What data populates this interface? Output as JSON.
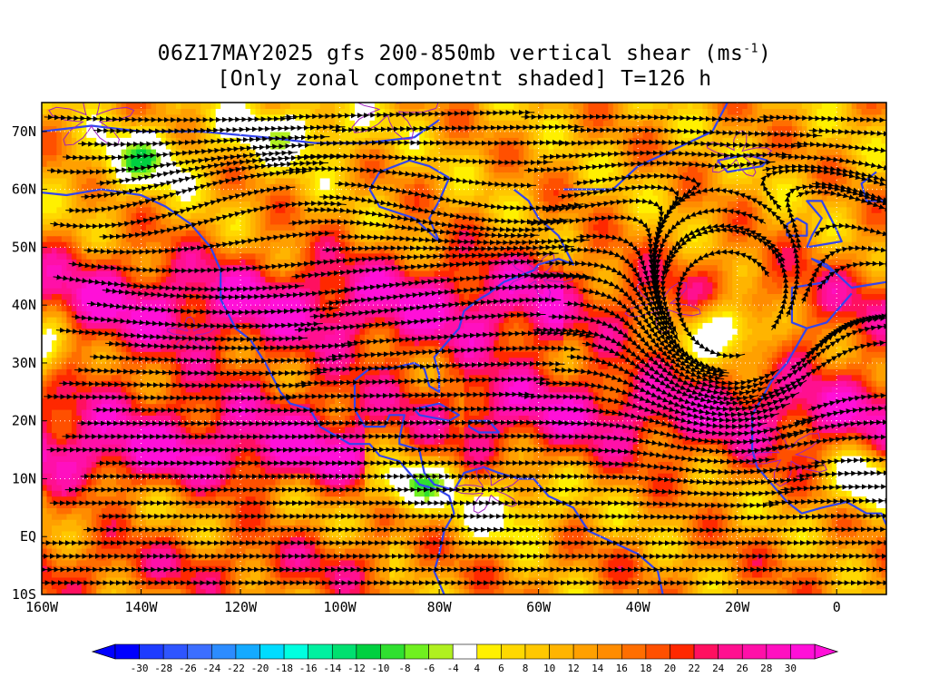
{
  "title": {
    "line1_prefix": "06Z17MAY2025 gfs 200-850mb vertical shear (ms",
    "line1_sup": "-1",
    "line1_suffix": ")",
    "line2": "[Only zonal componetnt shaded] T=126 h"
  },
  "map": {
    "lon_range": [
      -160,
      10
    ],
    "lat_range": [
      -10,
      75
    ],
    "lat_labels": [
      "70N",
      "60N",
      "50N",
      "40N",
      "30N",
      "20N",
      "10N",
      "EQ",
      "10S"
    ],
    "lon_labels": [
      "160W",
      "140W",
      "120W",
      "100W",
      "80W",
      "60W",
      "40W",
      "20W",
      "0"
    ],
    "gridlines": "dotted",
    "coastline_color": "#3344ee",
    "contour_color": "#a020c0",
    "streamline_color": "#000000"
  },
  "colorbar": {
    "levels": [
      "-30",
      "-28",
      "-26",
      "-24",
      "-22",
      "-20",
      "-18",
      "-16",
      "-14",
      "-12",
      "-10",
      "-8",
      "-6",
      "-4",
      "4",
      "6",
      "8",
      "10",
      "12",
      "14",
      "16",
      "18",
      "20",
      "22",
      "24",
      "26",
      "28",
      "30"
    ],
    "colors": [
      "#0000ff",
      "#1e3cff",
      "#2f55ff",
      "#3c6eff",
      "#2c8cff",
      "#14aaff",
      "#00dcff",
      "#00ffe0",
      "#00f0a0",
      "#00e070",
      "#00d040",
      "#30e030",
      "#70f020",
      "#b0f020",
      "#ffffff",
      "#fff000",
      "#ffd800",
      "#ffc800",
      "#ffb400",
      "#ffa000",
      "#ff8c00",
      "#ff6e00",
      "#ff5000",
      "#ff2800",
      "#ff1060",
      "#ff1090",
      "#ff10a8",
      "#ff10c0",
      "#ff10d8"
    ]
  }
}
